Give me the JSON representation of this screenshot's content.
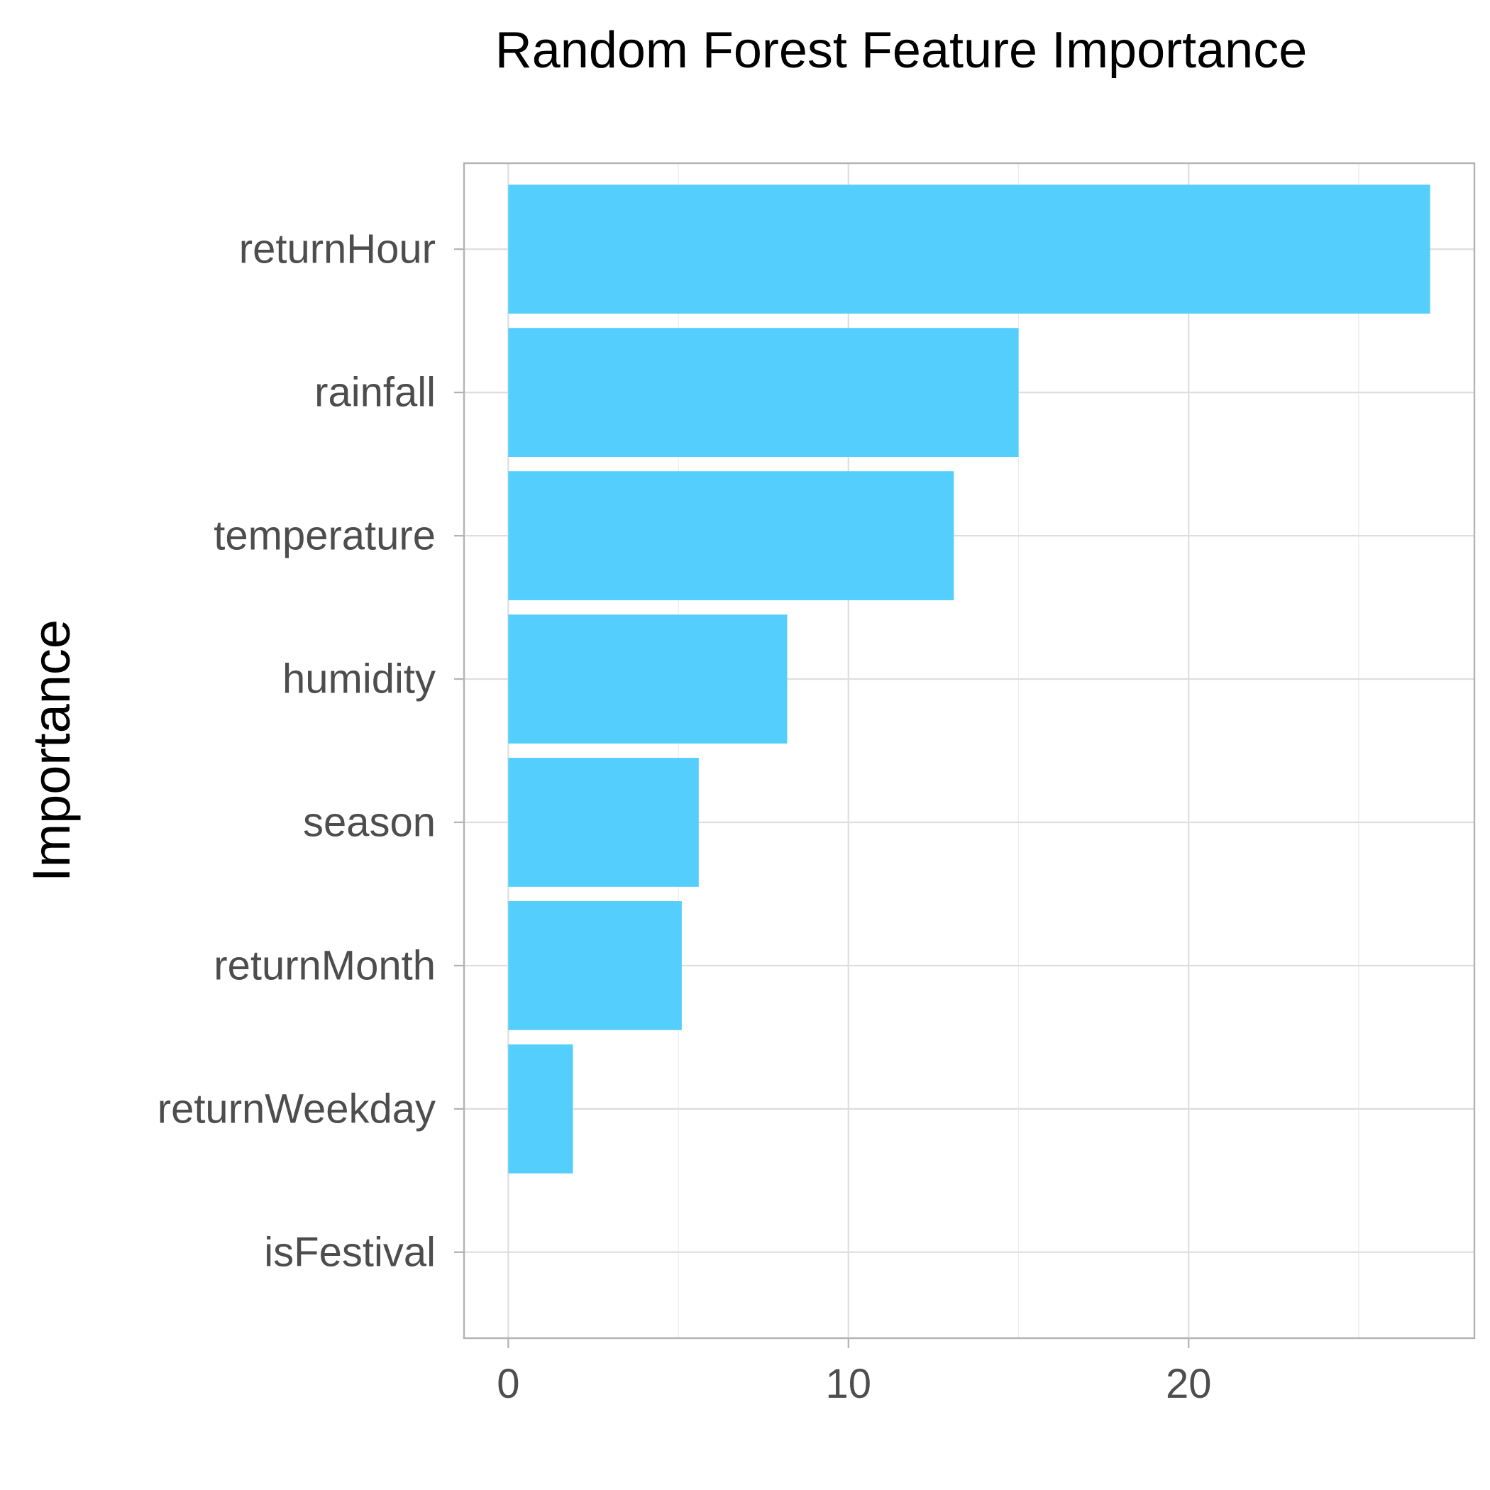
{
  "chart_data": {
    "type": "bar",
    "orientation": "horizontal",
    "title": "Random Forest Feature Importance",
    "xlabel": "",
    "ylabel": "Importance",
    "categories": [
      "returnHour",
      "rainfall",
      "temperature",
      "humidity",
      "season",
      "returnMonth",
      "returnWeekday",
      "isFestival"
    ],
    "values": [
      27.1,
      15.0,
      13.1,
      8.2,
      5.6,
      5.1,
      1.9,
      0.0
    ],
    "xlim": [
      -1.3,
      28.4
    ],
    "xticks": [
      0,
      10,
      20
    ],
    "grid": true,
    "bar_color": "#54cffd"
  }
}
